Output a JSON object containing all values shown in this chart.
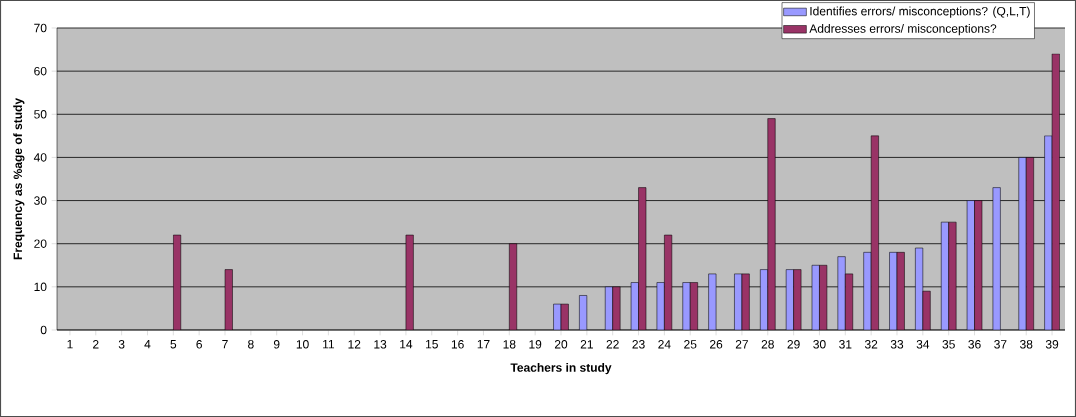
{
  "chart_data": {
    "type": "bar",
    "xlabel": "Teachers in study",
    "ylabel": "Frequency as %age of study",
    "categories": [
      "1",
      "2",
      "3",
      "4",
      "5",
      "6",
      "7",
      "8",
      "9",
      "10",
      "11",
      "12",
      "13",
      "14",
      "15",
      "16",
      "17",
      "18",
      "19",
      "20",
      "21",
      "22",
      "23",
      "24",
      "25",
      "26",
      "27",
      "28",
      "29",
      "30",
      "31",
      "32",
      "33",
      "34",
      "35",
      "36",
      "37",
      "38",
      "39"
    ],
    "series": [
      {
        "name": "Identifies errors/ misconceptions?   (Q,L,T)",
        "color": "#9999ff",
        "values": [
          null,
          null,
          null,
          null,
          null,
          null,
          null,
          null,
          null,
          null,
          null,
          null,
          null,
          null,
          null,
          null,
          null,
          null,
          null,
          6,
          8,
          10,
          11,
          11,
          11,
          13,
          13,
          14,
          14,
          15,
          17,
          18,
          18,
          19,
          25,
          30,
          33,
          40,
          45
        ]
      },
      {
        "name": "Addresses errors/ misconceptions?",
        "color": "#993366",
        "values": [
          null,
          null,
          null,
          null,
          22,
          null,
          14,
          null,
          null,
          null,
          null,
          null,
          null,
          22,
          null,
          null,
          null,
          20,
          null,
          6,
          null,
          10,
          33,
          22,
          11,
          null,
          13,
          49,
          14,
          15,
          13,
          45,
          18,
          9,
          25,
          30,
          null,
          40,
          64
        ]
      }
    ],
    "ylim": [
      0,
      70
    ],
    "yticks": [
      0,
      10,
      20,
      30,
      40,
      50,
      60,
      70
    ],
    "grid": "y",
    "legend": "top right"
  }
}
